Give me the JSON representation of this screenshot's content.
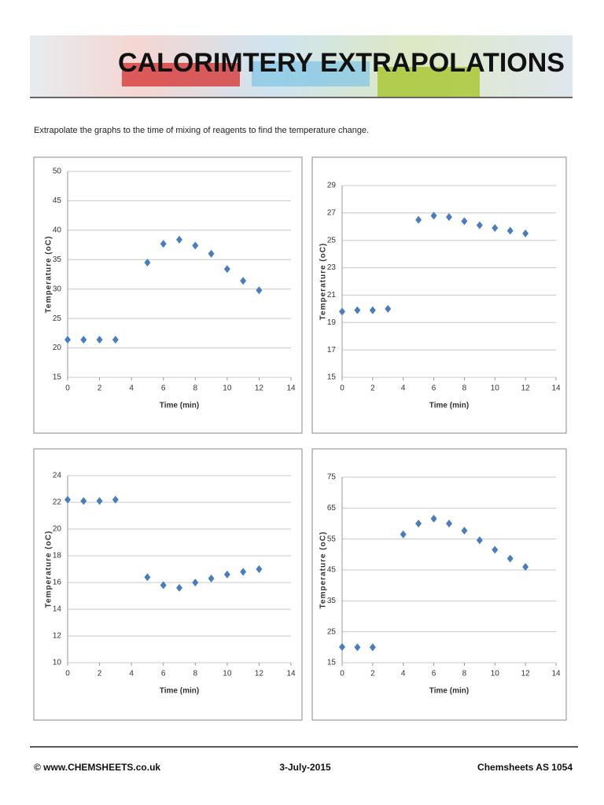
{
  "header": {
    "title": "CALORIMTERY EXTRAPOLATIONS"
  },
  "instruction": "Extrapolate the graphs to the time of mixing of reagents to find the temperature change.",
  "chart_data": [
    {
      "type": "scatter",
      "x_label": "Time (min)",
      "y_label": "Temperature (oC)",
      "color": "#4a7ebb",
      "grid": true,
      "x": [
        0,
        1,
        2,
        3,
        5,
        6,
        7,
        8,
        9,
        10,
        11,
        12
      ],
      "values": [
        21.4,
        21.4,
        21.4,
        21.4,
        34.5,
        37.7,
        38.4,
        37.4,
        36,
        33.4,
        31.4,
        29.8
      ],
      "xlim": [
        0,
        14
      ],
      "xticks": [
        0,
        2,
        4,
        6,
        8,
        10,
        12,
        14
      ],
      "ylim": [
        15,
        50
      ],
      "yticks": [
        15,
        20,
        25,
        30,
        35,
        40,
        45,
        50
      ]
    },
    {
      "type": "scatter",
      "x_label": "Time (min)",
      "y_label": "Temperature (oC)",
      "color": "#4a7ebb",
      "grid": true,
      "x": [
        0,
        1,
        2,
        3,
        5,
        6,
        7,
        8,
        9,
        10,
        11,
        12
      ],
      "values": [
        19.8,
        19.9,
        19.9,
        20.0,
        26.5,
        26.8,
        26.7,
        26.4,
        26.1,
        25.9,
        25.7,
        25.5
      ],
      "xlim": [
        0,
        14
      ],
      "xticks": [
        0,
        2,
        4,
        6,
        8,
        10,
        12,
        14
      ],
      "ylim": [
        15,
        29
      ],
      "yticks": [
        15,
        17,
        19,
        21,
        23,
        25,
        27,
        29
      ]
    },
    {
      "type": "scatter",
      "x_label": "Time (min)",
      "y_label": "Temperature (oC)",
      "color": "#4a7ebb",
      "grid": true,
      "x": [
        0,
        1,
        2,
        3,
        5,
        6,
        7,
        8,
        9,
        10,
        11,
        12
      ],
      "values": [
        22.2,
        22.1,
        22.1,
        22.2,
        16.4,
        15.8,
        15.6,
        16.0,
        16.3,
        16.6,
        16.8,
        17.0
      ],
      "xlim": [
        0,
        14
      ],
      "xticks": [
        0,
        2,
        4,
        6,
        8,
        10,
        12,
        14
      ],
      "ylim": [
        10,
        24
      ],
      "yticks": [
        10,
        12,
        14,
        16,
        18,
        20,
        22,
        24
      ]
    },
    {
      "type": "scatter",
      "x_label": "Time (min)",
      "y_label": "Temperature (oC)",
      "color": "#4a7ebb",
      "grid": true,
      "x": [
        0,
        1,
        2,
        4,
        5,
        6,
        7,
        8,
        9,
        10,
        11,
        12
      ],
      "values": [
        20.1,
        20,
        20,
        56.5,
        60,
        61.6,
        60,
        57.7,
        54.6,
        51.5,
        48.7,
        46.0
      ],
      "xlim": [
        0,
        14
      ],
      "xticks": [
        0,
        2,
        4,
        6,
        8,
        10,
        12,
        14
      ],
      "ylim": [
        15,
        75
      ],
      "yticks": [
        15,
        25,
        35,
        45,
        55,
        65,
        75
      ]
    }
  ],
  "footer": {
    "left": "© www.CHEMSHEETS.co.uk",
    "center": "3-July-2015",
    "right": "Chemsheets AS 1054"
  }
}
